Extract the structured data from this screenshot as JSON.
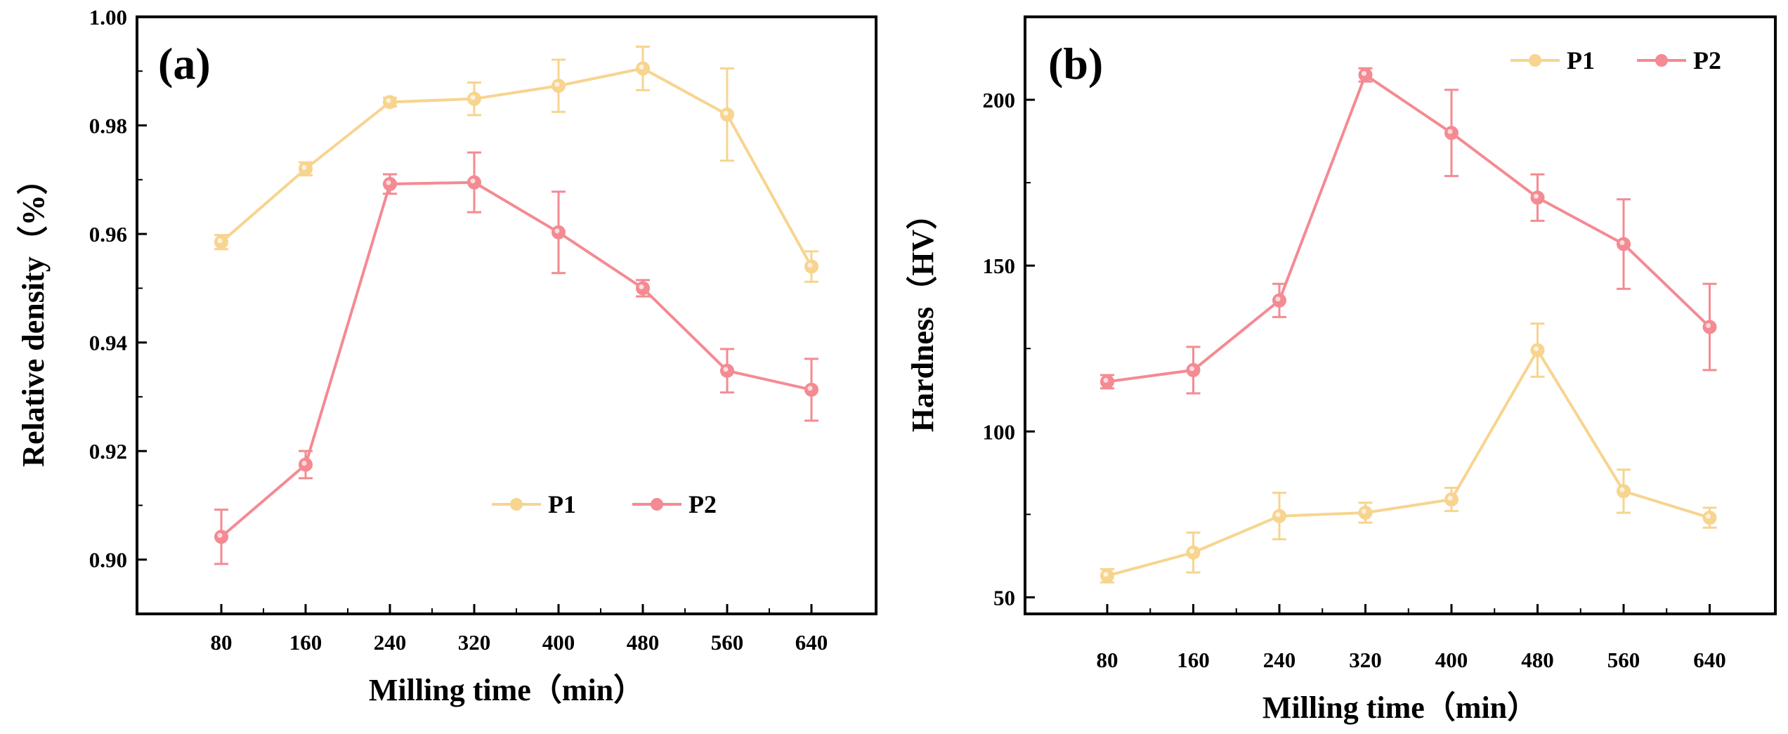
{
  "chart_data": [
    {
      "type": "line",
      "panel_label": "(a)",
      "x": [
        80,
        160,
        240,
        320,
        400,
        480,
        560,
        640
      ],
      "x_tick_labels": [
        "80",
        "160",
        "240",
        "320",
        "400",
        "480",
        "560",
        "640"
      ],
      "xlabel": "Milling time（min）",
      "ylabel": "Relative density（%）",
      "ylim": [
        0.89,
        1.0
      ],
      "y_ticks": [
        0.9,
        0.92,
        0.94,
        0.96,
        0.98,
        1.0
      ],
      "y_tick_labels": [
        "0.90",
        "0.92",
        "0.94",
        "0.96",
        "0.98",
        "1.00"
      ],
      "legend_position": "bottom-right",
      "series": [
        {
          "name": "P1",
          "color": "#f7d48f",
          "values": [
            0.9585,
            0.972,
            0.9843,
            0.9849,
            0.9873,
            0.9905,
            0.982,
            0.954
          ],
          "errors": [
            0.0013,
            0.0012,
            0.0008,
            0.003,
            0.0048,
            0.004,
            0.0085,
            0.0028
          ]
        },
        {
          "name": "P2",
          "color": "#f48a92",
          "values": [
            0.9042,
            0.9175,
            0.9692,
            0.9695,
            0.9603,
            0.95,
            0.9348,
            0.9313
          ],
          "errors": [
            0.005,
            0.0025,
            0.0018,
            0.0055,
            0.0075,
            0.0015,
            0.004,
            0.0057
          ]
        }
      ]
    },
    {
      "type": "line",
      "panel_label": "(b)",
      "x": [
        80,
        160,
        240,
        320,
        400,
        480,
        560,
        640
      ],
      "x_tick_labels": [
        "80",
        "160",
        "240",
        "320",
        "400",
        "480",
        "560",
        "640"
      ],
      "xlabel": "Milling time（min）",
      "ylabel": "Hardness（HV）",
      "ylim": [
        45,
        225
      ],
      "y_ticks": [
        50,
        100,
        150,
        200
      ],
      "y_tick_labels": [
        "50",
        "100",
        "150",
        "200"
      ],
      "legend_position": "top-right",
      "series": [
        {
          "name": "P1",
          "color": "#f7d48f",
          "values": [
            56.5,
            63.5,
            74.5,
            75.5,
            79.5,
            124.5,
            82.0,
            74.0
          ],
          "errors": [
            2.0,
            6.0,
            7.0,
            3.0,
            3.5,
            8.0,
            6.5,
            3.0
          ]
        },
        {
          "name": "P2",
          "color": "#f48a92",
          "values": [
            115.0,
            118.5,
            139.5,
            207.5,
            190.0,
            170.5,
            156.5,
            131.5
          ],
          "errors": [
            2.0,
            7.0,
            5.0,
            2.0,
            13.0,
            7.0,
            13.5,
            13.0
          ]
        }
      ]
    }
  ]
}
